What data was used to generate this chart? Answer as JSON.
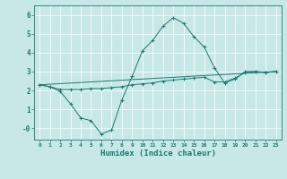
{
  "xlabel": "Humidex (Indice chaleur)",
  "background_color": "#c8e8e8",
  "grid_color": "#ffffff",
  "line_color": "#1a7a6e",
  "xlim": [
    -0.5,
    23.5
  ],
  "ylim": [
    -0.6,
    6.5
  ],
  "xticks": [
    0,
    1,
    2,
    3,
    4,
    5,
    6,
    7,
    8,
    9,
    10,
    11,
    12,
    13,
    14,
    15,
    16,
    17,
    18,
    19,
    20,
    21,
    22,
    23
  ],
  "yticks": [
    0,
    1,
    2,
    3,
    4,
    5,
    6
  ],
  "ytick_labels": [
    "-0",
    "1",
    "2",
    "3",
    "4",
    "5",
    "6"
  ],
  "line1_x": [
    0,
    1,
    2,
    3,
    4,
    5,
    6,
    7,
    8,
    9,
    10,
    11,
    12,
    13,
    14,
    15,
    16,
    17,
    18,
    19,
    20,
    21,
    22,
    23
  ],
  "line1_y": [
    2.3,
    2.2,
    1.95,
    1.3,
    0.55,
    0.4,
    -0.3,
    -0.1,
    1.5,
    2.75,
    4.1,
    4.65,
    5.4,
    5.85,
    5.55,
    4.85,
    4.3,
    3.2,
    2.4,
    2.6,
    3.0,
    3.0,
    2.95,
    3.0
  ],
  "line2_x": [
    0,
    1,
    2,
    3,
    4,
    5,
    6,
    7,
    8,
    9,
    10,
    11,
    12,
    13,
    14,
    15,
    16,
    17,
    18,
    19,
    20,
    21,
    22,
    23
  ],
  "line2_y": [
    2.3,
    2.2,
    2.05,
    2.05,
    2.05,
    2.1,
    2.1,
    2.15,
    2.2,
    2.3,
    2.35,
    2.4,
    2.5,
    2.55,
    2.6,
    2.65,
    2.7,
    2.45,
    2.45,
    2.65,
    2.95,
    3.0,
    2.95,
    3.0
  ],
  "line3_x": [
    0,
    23
  ],
  "line3_y": [
    2.3,
    3.0
  ]
}
